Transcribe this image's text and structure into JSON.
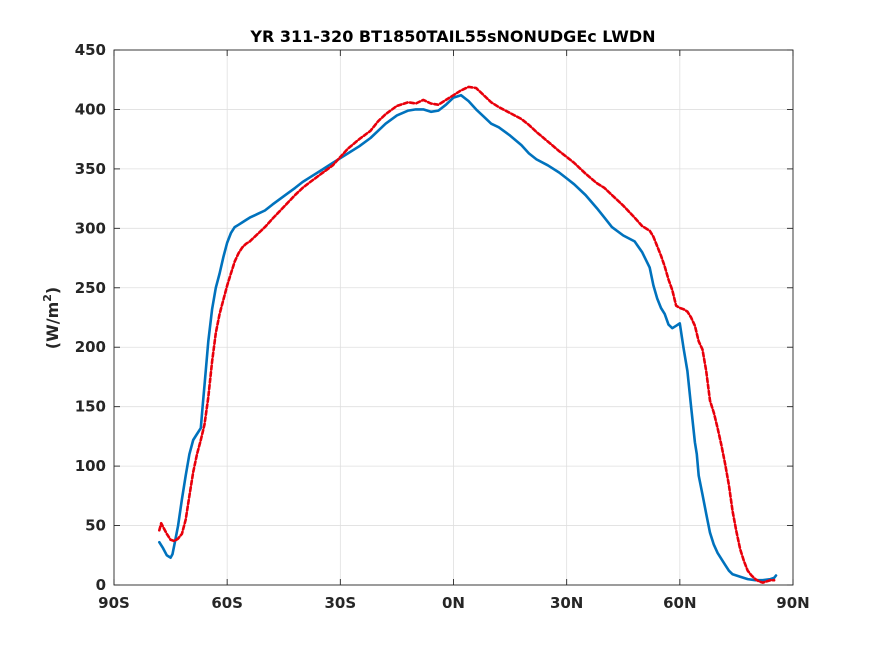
{
  "chart_data": {
    "type": "line",
    "title": "YR 311-320 BT1850TAIL55sNONUDGEc LWDN",
    "xlabel": "",
    "ylabel_main": "(W/m",
    "ylabel_sup": "2",
    "ylabel_close": ")",
    "xlim": [
      -90,
      90
    ],
    "ylim": [
      0,
      450
    ],
    "xticks": [
      -90,
      -60,
      -30,
      0,
      30,
      60,
      90
    ],
    "xtick_labels": [
      "90S",
      "60S",
      "30S",
      "0N",
      "30N",
      "60N",
      "90N"
    ],
    "yticks": [
      0,
      50,
      100,
      150,
      200,
      250,
      300,
      350,
      400,
      450
    ],
    "ytick_labels": [
      "0",
      "50",
      "100",
      "150",
      "200",
      "250",
      "300",
      "350",
      "400",
      "450"
    ],
    "grid": true,
    "series": [
      {
        "color": "#0072bd",
        "style": "solid",
        "x": [
          -78,
          -77,
          -76,
          -75.5,
          -75,
          -74.5,
          -74,
          -73,
          -72,
          -71,
          -70,
          -69,
          -68,
          -67,
          -66.5,
          -66,
          -65,
          -64,
          -63,
          -62,
          -61,
          -60,
          -59,
          -58,
          -57,
          -56,
          -55,
          -54,
          -52,
          -50,
          -48,
          -45,
          -42,
          -40,
          -38,
          -35,
          -32,
          -30,
          -28,
          -25,
          -22,
          -20,
          -18,
          -15,
          -12,
          -10,
          -8,
          -6,
          -4,
          -2,
          0,
          2,
          4,
          6,
          8,
          10,
          12,
          15,
          18,
          20,
          22,
          25,
          28,
          30,
          32,
          35,
          38,
          40,
          42,
          45,
          48,
          50,
          52,
          53,
          54,
          55,
          56,
          57,
          58,
          59,
          60,
          61,
          62,
          63,
          64,
          64.5,
          65,
          66,
          67,
          68,
          69,
          70,
          71,
          72,
          73,
          74,
          75,
          76,
          78,
          80,
          82,
          84,
          85,
          85.5
        ],
        "y": [
          36,
          31,
          25,
          24,
          23,
          26,
          34,
          50,
          72,
          92,
          110,
          122,
          127,
          132,
          150,
          168,
          205,
          232,
          250,
          262,
          276,
          288,
          296,
          301,
          303,
          305,
          307,
          309,
          312,
          315,
          320,
          327,
          334,
          339,
          343,
          349,
          355,
          359,
          363,
          369,
          376,
          382,
          388,
          395,
          399,
          400,
          400,
          398,
          399,
          404,
          410,
          412,
          407,
          400,
          394,
          388,
          385,
          378,
          370,
          363,
          358,
          353,
          347,
          342,
          337,
          328,
          317,
          309,
          301,
          294,
          289,
          280,
          267,
          252,
          241,
          233,
          228,
          219,
          216,
          218,
          220,
          199,
          180,
          150,
          120,
          110,
          92,
          76,
          60,
          44,
          34,
          27,
          22,
          17,
          12,
          9,
          8,
          7,
          5,
          4,
          4,
          5,
          6,
          8
        ]
      },
      {
        "color": "#e8000b",
        "style": "dashed",
        "x": [
          -78,
          -77.5,
          -77,
          -76,
          -75,
          -74,
          -73,
          -72,
          -71,
          -70,
          -69,
          -68,
          -67,
          -66,
          -65,
          -64,
          -63,
          -62,
          -61,
          -60,
          -59,
          -58,
          -57,
          -56,
          -55,
          -54,
          -52,
          -50,
          -48,
          -45,
          -42,
          -40,
          -38,
          -35,
          -32,
          -30,
          -28,
          -25,
          -22,
          -20,
          -18,
          -15,
          -12,
          -10,
          -8,
          -6,
          -4,
          -2,
          0,
          2,
          4,
          6,
          8,
          10,
          12,
          15,
          18,
          20,
          22,
          25,
          28,
          30,
          32,
          35,
          38,
          40,
          42,
          45,
          48,
          50,
          52,
          53,
          54,
          55,
          56,
          57,
          58,
          59,
          60,
          61,
          62,
          63,
          64,
          65,
          66,
          67,
          68,
          69,
          70,
          71,
          72,
          73,
          74,
          75,
          76,
          77,
          78,
          79,
          80,
          81,
          82,
          83,
          84,
          85
        ],
        "y": [
          46,
          52,
          49,
          43,
          38,
          37,
          39,
          43,
          55,
          75,
          95,
          110,
          122,
          135,
          158,
          188,
          212,
          228,
          240,
          252,
          262,
          272,
          279,
          284,
          287,
          289,
          295,
          301,
          308,
          318,
          328,
          334,
          339,
          346,
          353,
          360,
          367,
          375,
          382,
          390,
          396,
          403,
          406,
          405,
          408,
          405,
          404,
          408,
          412,
          416,
          419,
          418,
          412,
          406,
          402,
          397,
          392,
          387,
          381,
          373,
          365,
          360,
          355,
          346,
          338,
          334,
          328,
          319,
          309,
          302,
          298,
          293,
          285,
          277,
          268,
          257,
          248,
          235,
          233,
          232,
          230,
          225,
          218,
          205,
          198,
          180,
          155,
          145,
          132,
          118,
          102,
          84,
          62,
          45,
          30,
          20,
          12,
          8,
          5,
          3,
          2,
          3,
          4,
          4
        ]
      }
    ]
  }
}
